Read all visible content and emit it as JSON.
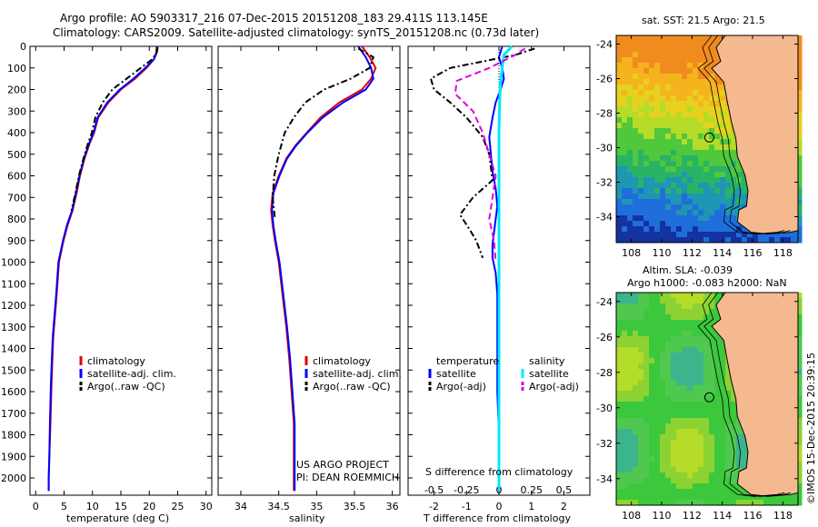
{
  "header": {
    "line1": "Argo profile: AO 5903317_216 07-Dec-2015 20151208_183 29.411S 113.145E",
    "line2": "Climatology: CARS2009. Satellite-adjusted climatology: synTS_20151208.nc (0.73d later)"
  },
  "colors": {
    "climatology": "#e00000",
    "satellite": "#0000ff",
    "argo": "#000000",
    "salinity_satellite": "#00e8ff",
    "salinity_argo": "#e000e0",
    "land": "#f5b98f"
  },
  "panels": {
    "temperature": {
      "xlabel": "temperature (deg C)",
      "legend": [
        "climatology",
        "satellite-adj. clim.",
        "Argo(..raw -QC)"
      ]
    },
    "salinity": {
      "xlabel": "salinity",
      "legend": [
        "climatology",
        "satellite-adj. clim.",
        "Argo(..raw -QC)"
      ],
      "note1": "US ARGO PROJECT",
      "note2": "PI: DEAN ROEMMICH"
    },
    "difference": {
      "xlabel": "T difference from climatology",
      "top_label": "S difference from climatology",
      "legend_t_head": "temperature",
      "legend_s_head": "salinity",
      "legend_t": [
        "satellite",
        "Argo(-adj)"
      ],
      "legend_s": [
        "satellite",
        "Argo(-adj)"
      ]
    }
  },
  "maps": {
    "sst_title": "sat. SST: 21.5 Argo: 21.5",
    "sla_title1": "Altim. SLA: -0.039",
    "sla_title2": "Argo h1000: -0.083 h2000: NaN",
    "lat_ticks": [
      "-24",
      "-26",
      "-28",
      "-30",
      "-32",
      "-34"
    ],
    "lon_ticks": [
      "108",
      "110",
      "112",
      "114",
      "116",
      "118"
    ]
  },
  "credit": "©IMOS 15-Dec-2015 20:39:15",
  "chart_data": [
    {
      "type": "line",
      "name": "temperature profile",
      "xlabel": "temperature (deg C)",
      "ylabel": "",
      "xlim": [
        -1,
        31
      ],
      "ylim": [
        2080,
        0
      ],
      "xticks": [
        0,
        5,
        10,
        15,
        20,
        25,
        30
      ],
      "yticks": [
        0,
        100,
        200,
        300,
        400,
        500,
        600,
        700,
        800,
        900,
        1000,
        1100,
        1200,
        1300,
        1400,
        1500,
        1600,
        1700,
        1800,
        1900,
        2000
      ],
      "series": [
        {
          "name": "climatology",
          "x": [
            21.3,
            21.2,
            20.8,
            19.5,
            17.5,
            15,
            12.8,
            11,
            10.3,
            9.5,
            8.6,
            7.8,
            7.2,
            6.5,
            5.6,
            4.9,
            4.1,
            3.7,
            3.1,
            2.8,
            2.6,
            2.4,
            2.3,
            2.3
          ],
          "y": [
            0,
            30,
            60,
            100,
            150,
            200,
            260,
            330,
            400,
            450,
            520,
            600,
            680,
            760,
            830,
            900,
            1000,
            1150,
            1350,
            1550,
            1750,
            1900,
            2000,
            2060
          ]
        },
        {
          "name": "satellite-adj. clim.",
          "x": [
            21.4,
            21.3,
            20.8,
            19.3,
            17.2,
            14.8,
            12.6,
            10.9,
            10.2,
            9.4,
            8.5,
            7.7,
            7.1,
            6.4,
            5.5,
            4.8,
            4,
            3.6,
            3,
            2.7,
            2.5,
            2.4,
            2.3,
            2.3
          ],
          "y": [
            0,
            30,
            60,
            100,
            150,
            200,
            260,
            330,
            400,
            450,
            520,
            600,
            680,
            760,
            830,
            900,
            1000,
            1150,
            1350,
            1550,
            1750,
            1900,
            2000,
            2060
          ]
        },
        {
          "name": "Argo(..raw -QC)",
          "x": [
            21.5,
            21.3,
            20.5,
            18.5,
            16,
            13.5,
            11.8,
            10.5,
            9.9,
            9.2,
            8.4,
            7.6,
            7,
            6.3
          ],
          "y": [
            5,
            30,
            60,
            100,
            150,
            200,
            260,
            330,
            400,
            450,
            520,
            600,
            680,
            760
          ]
        }
      ]
    },
    {
      "type": "line",
      "name": "salinity profile",
      "xlabel": "salinity",
      "ylabel": "",
      "xlim": [
        33.7,
        36.1
      ],
      "ylim": [
        2080,
        0
      ],
      "xticks": [
        34,
        34.5,
        35,
        35.5,
        36
      ],
      "series": [
        {
          "name": "climatology",
          "x": [
            35.6,
            35.7,
            35.78,
            35.72,
            35.6,
            35.3,
            35.05,
            34.87,
            34.72,
            34.6,
            34.5,
            34.42,
            34.4,
            34.42,
            34.45,
            34.5,
            34.55,
            34.6,
            34.64,
            34.67,
            34.7,
            34.7,
            34.7,
            34.7
          ],
          "y": [
            0,
            50,
            100,
            150,
            200,
            260,
            330,
            400,
            460,
            520,
            600,
            680,
            760,
            830,
            900,
            1000,
            1150,
            1300,
            1450,
            1600,
            1750,
            1900,
            2000,
            2060
          ]
        },
        {
          "name": "satellite-adj. clim.",
          "x": [
            35.55,
            35.65,
            35.72,
            35.75,
            35.65,
            35.35,
            35.08,
            34.88,
            34.73,
            34.61,
            34.51,
            34.43,
            34.41,
            34.43,
            34.46,
            34.51,
            34.56,
            34.61,
            34.65,
            34.68,
            34.71,
            34.71,
            34.71,
            34.71
          ],
          "y": [
            0,
            50,
            100,
            150,
            200,
            260,
            330,
            400,
            460,
            520,
            600,
            680,
            760,
            830,
            900,
            1000,
            1150,
            1300,
            1450,
            1600,
            1750,
            1900,
            2000,
            2060
          ]
        },
        {
          "name": "Argo(..raw -QC)",
          "x": [
            35.55,
            35.75,
            35.7,
            35.45,
            35.1,
            34.85,
            34.7,
            34.58,
            34.5,
            34.44,
            34.42,
            34.45
          ],
          "y": [
            10,
            50,
            100,
            150,
            200,
            260,
            330,
            400,
            500,
            600,
            700,
            800
          ]
        }
      ]
    },
    {
      "type": "line",
      "name": "difference from climatology",
      "xlabel": "T difference from climatology",
      "top_label": "S difference from climatology",
      "xlim": [
        -2.8,
        2.8
      ],
      "ylim": [
        2080,
        0
      ],
      "xticks": [
        -2,
        -1,
        0,
        1,
        2
      ],
      "top_ticks": [
        "-0.5",
        "-0.25",
        "0",
        "0.25",
        "0.5"
      ],
      "series": [
        {
          "name": "temperature satellite",
          "x": [
            0.1,
            0,
            0.1,
            0.15,
            0.05,
            -0.1,
            -0.2,
            -0.3,
            -0.25,
            -0.2,
            -0.1,
            -0.05,
            -0.1,
            -0.15,
            -0.2,
            -0.2,
            -0.1,
            -0.05,
            -0.05,
            -0.05,
            0
          ],
          "y": [
            0,
            50,
            100,
            150,
            200,
            260,
            330,
            420,
            500,
            580,
            660,
            740,
            800,
            860,
            920,
            980,
            1050,
            1150,
            1300,
            1600,
            1800
          ]
        },
        {
          "name": "temperature Argo(-adj)",
          "x": [
            1.1,
            0.5,
            -1.5,
            -2.1,
            -2,
            -1.5,
            -1,
            -0.5,
            -0.3,
            -0.2,
            -0.8,
            -1.2,
            -0.9,
            -0.7,
            -0.5
          ],
          "y": [
            10,
            40,
            100,
            150,
            200,
            260,
            330,
            420,
            500,
            620,
            700,
            780,
            850,
            900,
            980
          ]
        },
        {
          "name": "salinity satellite",
          "x": [
            0.4,
            0.15,
            0.1,
            0.05,
            0.02,
            0,
            0,
            0,
            0,
            0,
            0
          ],
          "y": [
            0,
            40,
            100,
            160,
            260,
            400,
            600,
            900,
            1300,
            1700,
            2060
          ]
        },
        {
          "name": "salinity Argo(-adj)",
          "x": [
            0.8,
            0.5,
            -0.3,
            -1.3,
            -1.35,
            -0.8,
            -0.5,
            -0.3,
            -0.1,
            -0.2,
            -0.3,
            -0.15,
            -0.1
          ],
          "y": [
            10,
            40,
            100,
            160,
            220,
            300,
            400,
            500,
            600,
            700,
            800,
            900,
            1000
          ]
        }
      ]
    }
  ]
}
